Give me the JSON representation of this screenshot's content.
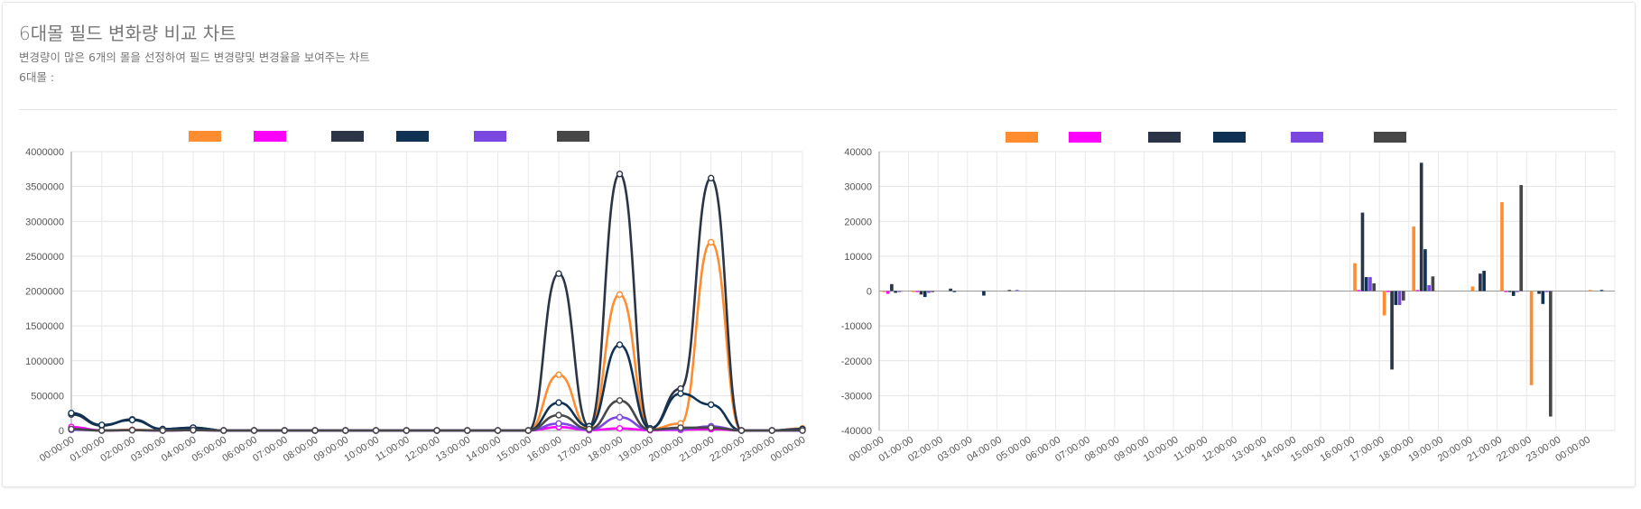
{
  "header": {
    "title": "6대몰 필드 변화량 비교 차트",
    "subtitle": "변경량이 많은 6개의 몰을 선정하여 필드 변경량및 변경율을 보여주는 차트",
    "mall_label": "6대몰 :"
  },
  "chart_data": [
    {
      "type": "line",
      "categories": [
        "00:00:00",
        "01:00:00",
        "02:00:00",
        "03:00:00",
        "04:00:00",
        "05:00:00",
        "06:00:00",
        "07:00:00",
        "08:00:00",
        "09:00:00",
        "10:00:00",
        "11:00:00",
        "12:00:00",
        "13:00:00",
        "14:00:00",
        "15:00:00",
        "16:00:00",
        "17:00:00",
        "18:00:00",
        "19:00:00",
        "20:00:00",
        "21:00:00",
        "22:00:00",
        "23:00:00",
        "00:00:00"
      ],
      "yticks": [
        0,
        500000,
        1000000,
        1500000,
        2000000,
        2500000,
        3000000,
        3500000,
        4000000
      ],
      "ylim": [
        0,
        4000000
      ],
      "grid": true,
      "legend_position": "top",
      "series": [
        {
          "color": "#ff8c2e",
          "values": [
            30000,
            0,
            10000,
            0,
            20000,
            0,
            0,
            0,
            0,
            0,
            0,
            0,
            0,
            0,
            0,
            0,
            800000,
            30000,
            1950000,
            20000,
            100000,
            2700000,
            0,
            0,
            30000
          ]
        },
        {
          "color": "#ff00ff",
          "values": [
            50000,
            0,
            5000,
            0,
            5000,
            0,
            0,
            0,
            0,
            0,
            0,
            0,
            0,
            0,
            0,
            0,
            50000,
            5000,
            30000,
            5000,
            10000,
            20000,
            0,
            0,
            0
          ]
        },
        {
          "color": "#2c3447",
          "values": [
            230000,
            70000,
            160000,
            20000,
            40000,
            0,
            0,
            0,
            0,
            0,
            0,
            0,
            0,
            0,
            0,
            0,
            2250000,
            60000,
            3680000,
            30000,
            600000,
            3620000,
            0,
            0,
            20000
          ]
        },
        {
          "color": "#0f3254",
          "values": [
            250000,
            80000,
            150000,
            20000,
            40000,
            0,
            0,
            0,
            0,
            0,
            0,
            0,
            0,
            0,
            0,
            0,
            400000,
            60000,
            1230000,
            30000,
            530000,
            370000,
            0,
            0,
            20000
          ]
        },
        {
          "color": "#7a48e0",
          "values": [
            10000,
            0,
            5000,
            0,
            5000,
            0,
            0,
            0,
            0,
            0,
            0,
            0,
            0,
            0,
            0,
            0,
            100000,
            10000,
            190000,
            10000,
            20000,
            60000,
            0,
            0,
            0
          ]
        },
        {
          "color": "#474747",
          "values": [
            20000,
            0,
            5000,
            0,
            5000,
            0,
            0,
            0,
            0,
            0,
            0,
            0,
            0,
            0,
            0,
            0,
            220000,
            20000,
            430000,
            10000,
            40000,
            40000,
            0,
            0,
            0
          ]
        }
      ]
    },
    {
      "type": "bar",
      "categories": [
        "00:00:00",
        "01:00:00",
        "02:00:00",
        "03:00:00",
        "04:00:00",
        "05:00:00",
        "06:00:00",
        "07:00:00",
        "08:00:00",
        "09:00:00",
        "10:00:00",
        "11:00:00",
        "12:00:00",
        "13:00:00",
        "14:00:00",
        "15:00:00",
        "16:00:00",
        "17:00:00",
        "18:00:00",
        "19:00:00",
        "20:00:00",
        "21:00:00",
        "22:00:00",
        "23:00:00",
        "00:00:00"
      ],
      "yticks": [
        -40000,
        -30000,
        -20000,
        -10000,
        0,
        10000,
        20000,
        30000,
        40000
      ],
      "ylim": [
        -40000,
        40000
      ],
      "grid": true,
      "legend_position": "top",
      "series": [
        {
          "color": "#ff8c2e",
          "values": [
            -300,
            -300,
            0,
            0,
            0,
            0,
            0,
            0,
            0,
            0,
            0,
            0,
            0,
            0,
            0,
            0,
            8000,
            -7000,
            18500,
            0,
            1300,
            25500,
            -27000,
            0,
            300
          ]
        },
        {
          "color": "#ff00ff",
          "values": [
            -800,
            -300,
            0,
            0,
            0,
            0,
            0,
            0,
            0,
            0,
            0,
            0,
            0,
            0,
            0,
            0,
            300,
            -300,
            300,
            0,
            0,
            -300,
            0,
            0,
            0
          ]
        },
        {
          "color": "#2c3447",
          "values": [
            2000,
            -1000,
            700,
            0,
            300,
            0,
            0,
            0,
            0,
            0,
            0,
            0,
            0,
            0,
            0,
            0,
            22500,
            -22500,
            36800,
            0,
            5000,
            -300,
            -800,
            0,
            0
          ]
        },
        {
          "color": "#0f3254",
          "values": [
            -500,
            -1700,
            -300,
            -1300,
            0,
            0,
            0,
            0,
            0,
            0,
            0,
            0,
            0,
            0,
            0,
            0,
            4000,
            -4000,
            12000,
            0,
            5800,
            -1400,
            -3700,
            0,
            300
          ]
        },
        {
          "color": "#7a48e0",
          "values": [
            -300,
            -500,
            0,
            0,
            300,
            0,
            0,
            0,
            0,
            0,
            0,
            0,
            0,
            0,
            0,
            0,
            4000,
            -4000,
            1700,
            0,
            0,
            -300,
            -300,
            0,
            0
          ]
        },
        {
          "color": "#474747",
          "values": [
            0,
            -300,
            0,
            0,
            0,
            0,
            0,
            0,
            0,
            0,
            0,
            0,
            0,
            0,
            0,
            0,
            2200,
            -2700,
            4200,
            0,
            0,
            30400,
            -36000,
            0,
            0
          ]
        }
      ]
    }
  ]
}
